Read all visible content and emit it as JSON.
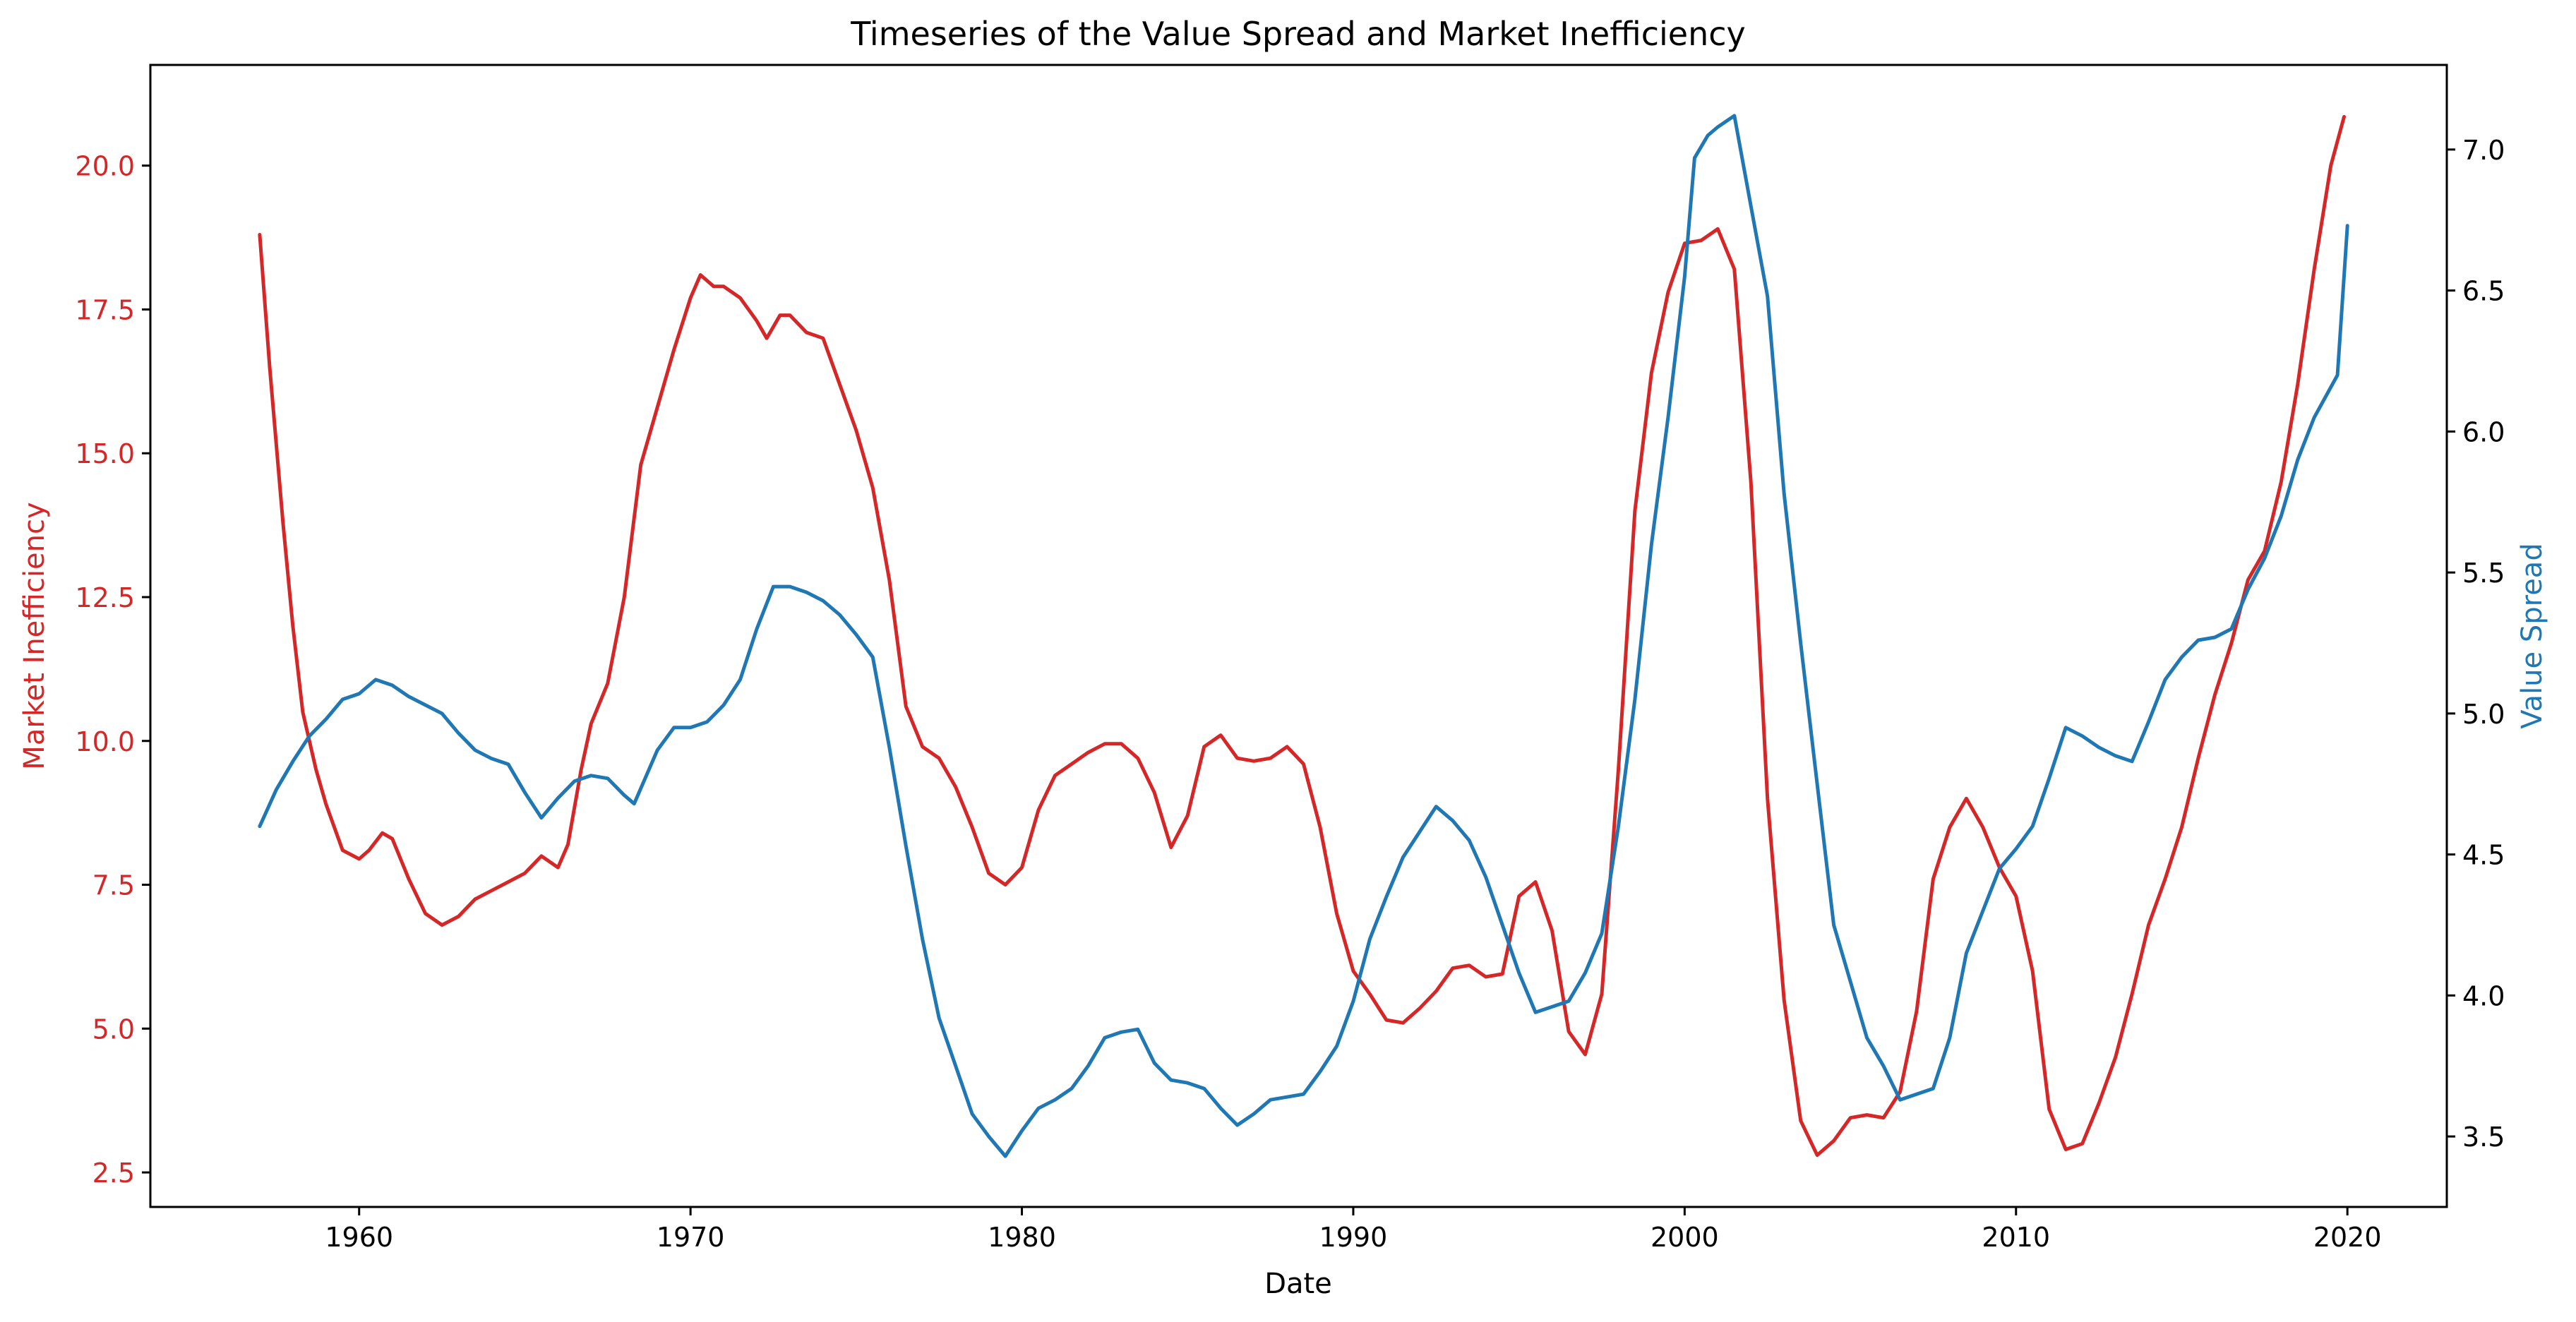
{
  "chart_data": {
    "type": "line",
    "title": "Timeseries of the Value Spread and Market Inefficiency",
    "xlabel": "Date",
    "x_axis": {
      "range": [
        1953.7,
        2023.0
      ],
      "ticks": [
        1960,
        1970,
        1980,
        1990,
        2000,
        2010,
        2020
      ],
      "tick_labels": [
        "1960",
        "1970",
        "1980",
        "1990",
        "2000",
        "2010",
        "2020"
      ]
    },
    "left_axis": {
      "label": "Market Inefficiency",
      "color": "#d62728",
      "range": [
        1.9,
        21.75
      ],
      "ticks": [
        2.5,
        5.0,
        7.5,
        10.0,
        12.5,
        15.0,
        17.5,
        20.0
      ],
      "tick_labels": [
        "2.5",
        "5.0",
        "7.5",
        "10.0",
        "12.5",
        "15.0",
        "17.5",
        "20.0"
      ]
    },
    "right_axis": {
      "label": "Value Spread",
      "color": "#1f77b4",
      "range": [
        3.25,
        7.3
      ],
      "ticks": [
        3.5,
        4.0,
        4.5,
        5.0,
        5.5,
        6.0,
        6.5,
        7.0
      ],
      "tick_labels": [
        "3.5",
        "4.0",
        "4.5",
        "5.0",
        "5.5",
        "6.0",
        "6.5",
        "7.0"
      ]
    },
    "grid": false,
    "series": [
      {
        "name": "Market Inefficiency",
        "axis": "left",
        "color": "#d62728",
        "points": [
          [
            1957.0,
            18.8
          ],
          [
            1957.3,
            16.5
          ],
          [
            1957.7,
            13.8
          ],
          [
            1958.0,
            12.0
          ],
          [
            1958.3,
            10.5
          ],
          [
            1958.7,
            9.5
          ],
          [
            1959.0,
            8.9
          ],
          [
            1959.5,
            8.1
          ],
          [
            1960.0,
            7.95
          ],
          [
            1960.3,
            8.1
          ],
          [
            1960.7,
            8.4
          ],
          [
            1961.0,
            8.3
          ],
          [
            1961.5,
            7.6
          ],
          [
            1962.0,
            7.0
          ],
          [
            1962.5,
            6.8
          ],
          [
            1963.0,
            6.95
          ],
          [
            1963.5,
            7.25
          ],
          [
            1964.0,
            7.4
          ],
          [
            1964.5,
            7.55
          ],
          [
            1965.0,
            7.7
          ],
          [
            1965.5,
            8.0
          ],
          [
            1966.0,
            7.8
          ],
          [
            1966.3,
            8.2
          ],
          [
            1966.7,
            9.5
          ],
          [
            1967.0,
            10.3
          ],
          [
            1967.5,
            11.0
          ],
          [
            1968.0,
            12.5
          ],
          [
            1968.5,
            14.8
          ],
          [
            1969.0,
            15.8
          ],
          [
            1969.5,
            16.8
          ],
          [
            1970.0,
            17.7
          ],
          [
            1970.3,
            18.1
          ],
          [
            1970.7,
            17.9
          ],
          [
            1971.0,
            17.9
          ],
          [
            1971.5,
            17.7
          ],
          [
            1972.0,
            17.3
          ],
          [
            1972.3,
            17.0
          ],
          [
            1972.7,
            17.4
          ],
          [
            1973.0,
            17.4
          ],
          [
            1973.5,
            17.1
          ],
          [
            1974.0,
            17.0
          ],
          [
            1974.5,
            16.2
          ],
          [
            1975.0,
            15.4
          ],
          [
            1975.5,
            14.4
          ],
          [
            1976.0,
            12.8
          ],
          [
            1976.5,
            10.6
          ],
          [
            1977.0,
            9.9
          ],
          [
            1977.5,
            9.7
          ],
          [
            1978.0,
            9.2
          ],
          [
            1978.5,
            8.5
          ],
          [
            1979.0,
            7.7
          ],
          [
            1979.5,
            7.5
          ],
          [
            1980.0,
            7.8
          ],
          [
            1980.5,
            8.8
          ],
          [
            1981.0,
            9.4
          ],
          [
            1981.5,
            9.6
          ],
          [
            1982.0,
            9.8
          ],
          [
            1982.5,
            9.95
          ],
          [
            1983.0,
            9.95
          ],
          [
            1983.5,
            9.7
          ],
          [
            1984.0,
            9.1
          ],
          [
            1984.5,
            8.15
          ],
          [
            1985.0,
            8.7
          ],
          [
            1985.5,
            9.9
          ],
          [
            1986.0,
            10.1
          ],
          [
            1986.5,
            9.7
          ],
          [
            1987.0,
            9.65
          ],
          [
            1987.5,
            9.7
          ],
          [
            1988.0,
            9.9
          ],
          [
            1988.5,
            9.6
          ],
          [
            1989.0,
            8.5
          ],
          [
            1989.5,
            7.0
          ],
          [
            1990.0,
            6.0
          ],
          [
            1990.5,
            5.6
          ],
          [
            1991.0,
            5.15
          ],
          [
            1991.5,
            5.1
          ],
          [
            1992.0,
            5.35
          ],
          [
            1992.5,
            5.65
          ],
          [
            1993.0,
            6.05
          ],
          [
            1993.5,
            6.1
          ],
          [
            1994.0,
            5.9
          ],
          [
            1994.5,
            5.95
          ],
          [
            1995.0,
            7.3
          ],
          [
            1995.5,
            7.55
          ],
          [
            1996.0,
            6.7
          ],
          [
            1996.5,
            4.95
          ],
          [
            1997.0,
            4.55
          ],
          [
            1997.5,
            5.6
          ],
          [
            1998.0,
            9.5
          ],
          [
            1998.5,
            14.0
          ],
          [
            1999.0,
            16.4
          ],
          [
            1999.5,
            17.8
          ],
          [
            2000.0,
            18.65
          ],
          [
            2000.5,
            18.7
          ],
          [
            2001.0,
            18.9
          ],
          [
            2001.5,
            18.2
          ],
          [
            2002.0,
            14.5
          ],
          [
            2002.5,
            9.0
          ],
          [
            2003.0,
            5.5
          ],
          [
            2003.5,
            3.4
          ],
          [
            2004.0,
            2.8
          ],
          [
            2004.5,
            3.05
          ],
          [
            2005.0,
            3.45
          ],
          [
            2005.5,
            3.5
          ],
          [
            2006.0,
            3.45
          ],
          [
            2006.5,
            3.9
          ],
          [
            2007.0,
            5.3
          ],
          [
            2007.5,
            7.6
          ],
          [
            2008.0,
            8.5
          ],
          [
            2008.5,
            9.0
          ],
          [
            2009.0,
            8.5
          ],
          [
            2009.5,
            7.8
          ],
          [
            2010.0,
            7.3
          ],
          [
            2010.5,
            6.0
          ],
          [
            2011.0,
            3.6
          ],
          [
            2011.5,
            2.9
          ],
          [
            2012.0,
            3.0
          ],
          [
            2012.5,
            3.7
          ],
          [
            2013.0,
            4.5
          ],
          [
            2013.5,
            5.6
          ],
          [
            2014.0,
            6.8
          ],
          [
            2014.5,
            7.6
          ],
          [
            2015.0,
            8.5
          ],
          [
            2015.5,
            9.7
          ],
          [
            2016.0,
            10.8
          ],
          [
            2016.5,
            11.7
          ],
          [
            2017.0,
            12.8
          ],
          [
            2017.5,
            13.3
          ],
          [
            2018.0,
            14.5
          ],
          [
            2018.5,
            16.2
          ],
          [
            2019.0,
            18.2
          ],
          [
            2019.5,
            20.0
          ],
          [
            2019.9,
            20.85
          ]
        ]
      },
      {
        "name": "Value Spread",
        "axis": "right",
        "color": "#1f77b4",
        "points": [
          [
            1957.0,
            4.6
          ],
          [
            1957.5,
            4.73
          ],
          [
            1958.0,
            4.83
          ],
          [
            1958.5,
            4.92
          ],
          [
            1959.0,
            4.98
          ],
          [
            1959.5,
            5.05
          ],
          [
            1960.0,
            5.07
          ],
          [
            1960.5,
            5.12
          ],
          [
            1961.0,
            5.1
          ],
          [
            1961.5,
            5.06
          ],
          [
            1962.0,
            5.03
          ],
          [
            1962.5,
            5.0
          ],
          [
            1963.0,
            4.93
          ],
          [
            1963.5,
            4.87
          ],
          [
            1964.0,
            4.84
          ],
          [
            1964.5,
            4.82
          ],
          [
            1965.0,
            4.72
          ],
          [
            1965.5,
            4.63
          ],
          [
            1966.0,
            4.7
          ],
          [
            1966.5,
            4.76
          ],
          [
            1967.0,
            4.78
          ],
          [
            1967.5,
            4.77
          ],
          [
            1968.0,
            4.71
          ],
          [
            1968.3,
            4.68
          ],
          [
            1969.0,
            4.87
          ],
          [
            1969.5,
            4.95
          ],
          [
            1970.0,
            4.95
          ],
          [
            1970.5,
            4.97
          ],
          [
            1971.0,
            5.03
          ],
          [
            1971.5,
            5.12
          ],
          [
            1972.0,
            5.3
          ],
          [
            1972.5,
            5.45
          ],
          [
            1973.0,
            5.45
          ],
          [
            1973.5,
            5.43
          ],
          [
            1974.0,
            5.4
          ],
          [
            1974.5,
            5.35
          ],
          [
            1975.0,
            5.28
          ],
          [
            1975.5,
            5.2
          ],
          [
            1976.0,
            4.88
          ],
          [
            1976.5,
            4.53
          ],
          [
            1977.0,
            4.2
          ],
          [
            1977.5,
            3.92
          ],
          [
            1978.0,
            3.75
          ],
          [
            1978.5,
            3.58
          ],
          [
            1979.0,
            3.5
          ],
          [
            1979.5,
            3.43
          ],
          [
            1980.0,
            3.52
          ],
          [
            1980.5,
            3.6
          ],
          [
            1981.0,
            3.63
          ],
          [
            1981.5,
            3.67
          ],
          [
            1982.0,
            3.75
          ],
          [
            1982.5,
            3.85
          ],
          [
            1983.0,
            3.87
          ],
          [
            1983.5,
            3.88
          ],
          [
            1984.0,
            3.76
          ],
          [
            1984.5,
            3.7
          ],
          [
            1985.0,
            3.69
          ],
          [
            1985.5,
            3.67
          ],
          [
            1986.0,
            3.6
          ],
          [
            1986.5,
            3.54
          ],
          [
            1987.0,
            3.58
          ],
          [
            1987.5,
            3.63
          ],
          [
            1988.0,
            3.64
          ],
          [
            1988.5,
            3.65
          ],
          [
            1989.0,
            3.73
          ],
          [
            1989.5,
            3.82
          ],
          [
            1990.0,
            3.98
          ],
          [
            1990.5,
            4.2
          ],
          [
            1991.0,
            4.35
          ],
          [
            1991.5,
            4.49
          ],
          [
            1992.0,
            4.58
          ],
          [
            1992.5,
            4.67
          ],
          [
            1993.0,
            4.62
          ],
          [
            1993.5,
            4.55
          ],
          [
            1994.0,
            4.42
          ],
          [
            1994.5,
            4.25
          ],
          [
            1995.0,
            4.08
          ],
          [
            1995.5,
            3.94
          ],
          [
            1996.0,
            3.96
          ],
          [
            1996.5,
            3.98
          ],
          [
            1997.0,
            4.08
          ],
          [
            1997.5,
            4.22
          ],
          [
            1998.0,
            4.6
          ],
          [
            1998.5,
            5.05
          ],
          [
            1999.0,
            5.6
          ],
          [
            1999.5,
            6.05
          ],
          [
            2000.0,
            6.55
          ],
          [
            2000.3,
            6.97
          ],
          [
            2000.7,
            7.05
          ],
          [
            2001.0,
            7.08
          ],
          [
            2001.5,
            7.12
          ],
          [
            2002.0,
            6.8
          ],
          [
            2002.5,
            6.48
          ],
          [
            2003.0,
            5.78
          ],
          [
            2003.5,
            5.25
          ],
          [
            2004.0,
            4.75
          ],
          [
            2004.5,
            4.25
          ],
          [
            2005.0,
            4.05
          ],
          [
            2005.5,
            3.85
          ],
          [
            2006.0,
            3.75
          ],
          [
            2006.5,
            3.63
          ],
          [
            2007.0,
            3.65
          ],
          [
            2007.5,
            3.67
          ],
          [
            2008.0,
            3.85
          ],
          [
            2008.5,
            4.15
          ],
          [
            2009.0,
            4.3
          ],
          [
            2009.5,
            4.45
          ],
          [
            2010.0,
            4.52
          ],
          [
            2010.5,
            4.6
          ],
          [
            2011.0,
            4.77
          ],
          [
            2011.5,
            4.95
          ],
          [
            2012.0,
            4.92
          ],
          [
            2012.5,
            4.88
          ],
          [
            2013.0,
            4.85
          ],
          [
            2013.5,
            4.83
          ],
          [
            2014.0,
            4.97
          ],
          [
            2014.5,
            5.12
          ],
          [
            2015.0,
            5.2
          ],
          [
            2015.5,
            5.26
          ],
          [
            2016.0,
            5.27
          ],
          [
            2016.5,
            5.3
          ],
          [
            2017.0,
            5.44
          ],
          [
            2017.5,
            5.55
          ],
          [
            2018.0,
            5.7
          ],
          [
            2018.5,
            5.9
          ],
          [
            2019.0,
            6.05
          ],
          [
            2019.7,
            6.2
          ],
          [
            2020.0,
            6.73
          ]
        ]
      }
    ]
  }
}
